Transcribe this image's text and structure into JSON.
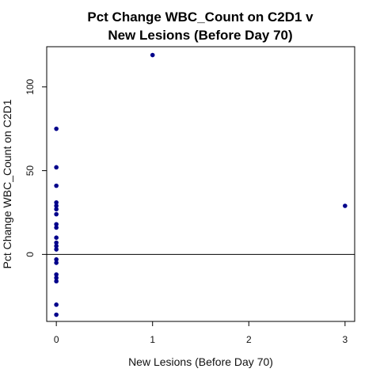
{
  "chart_data": {
    "type": "scatter",
    "title_lines": [
      "Pct Change WBC_Count on C2D1 v",
      "New Lesions (Before Day 70)"
    ],
    "xlabel": "New Lesions (Before Day 70)",
    "ylabel": "Pct Change WBC_Count on C2D1",
    "xlim": [
      -0.1,
      3.1
    ],
    "ylim": [
      -40,
      124
    ],
    "x_ticks": [
      0,
      1,
      2,
      3
    ],
    "x_tick_labels": [
      "0",
      "1",
      "2",
      "3"
    ],
    "y_ticks": [
      0,
      50,
      100
    ],
    "y_tick_labels": [
      "0",
      "50",
      "100"
    ],
    "reference_line_y": 0,
    "point_color": "#00008B",
    "grid": false,
    "points": [
      {
        "x": 0,
        "y": 75
      },
      {
        "x": 0,
        "y": 52
      },
      {
        "x": 0,
        "y": 41
      },
      {
        "x": 0,
        "y": 31
      },
      {
        "x": 0,
        "y": 29
      },
      {
        "x": 0,
        "y": 27
      },
      {
        "x": 0,
        "y": 24
      },
      {
        "x": 0,
        "y": 18
      },
      {
        "x": 0,
        "y": 16
      },
      {
        "x": 0,
        "y": 10
      },
      {
        "x": 0,
        "y": 7
      },
      {
        "x": 0,
        "y": 5
      },
      {
        "x": 0,
        "y": 3
      },
      {
        "x": 0,
        "y": -3
      },
      {
        "x": 0,
        "y": -5
      },
      {
        "x": 0,
        "y": -12
      },
      {
        "x": 0,
        "y": -14
      },
      {
        "x": 0,
        "y": -16
      },
      {
        "x": 0,
        "y": -30
      },
      {
        "x": 0,
        "y": -36
      },
      {
        "x": 1,
        "y": 119
      },
      {
        "x": 3,
        "y": 29
      }
    ]
  }
}
